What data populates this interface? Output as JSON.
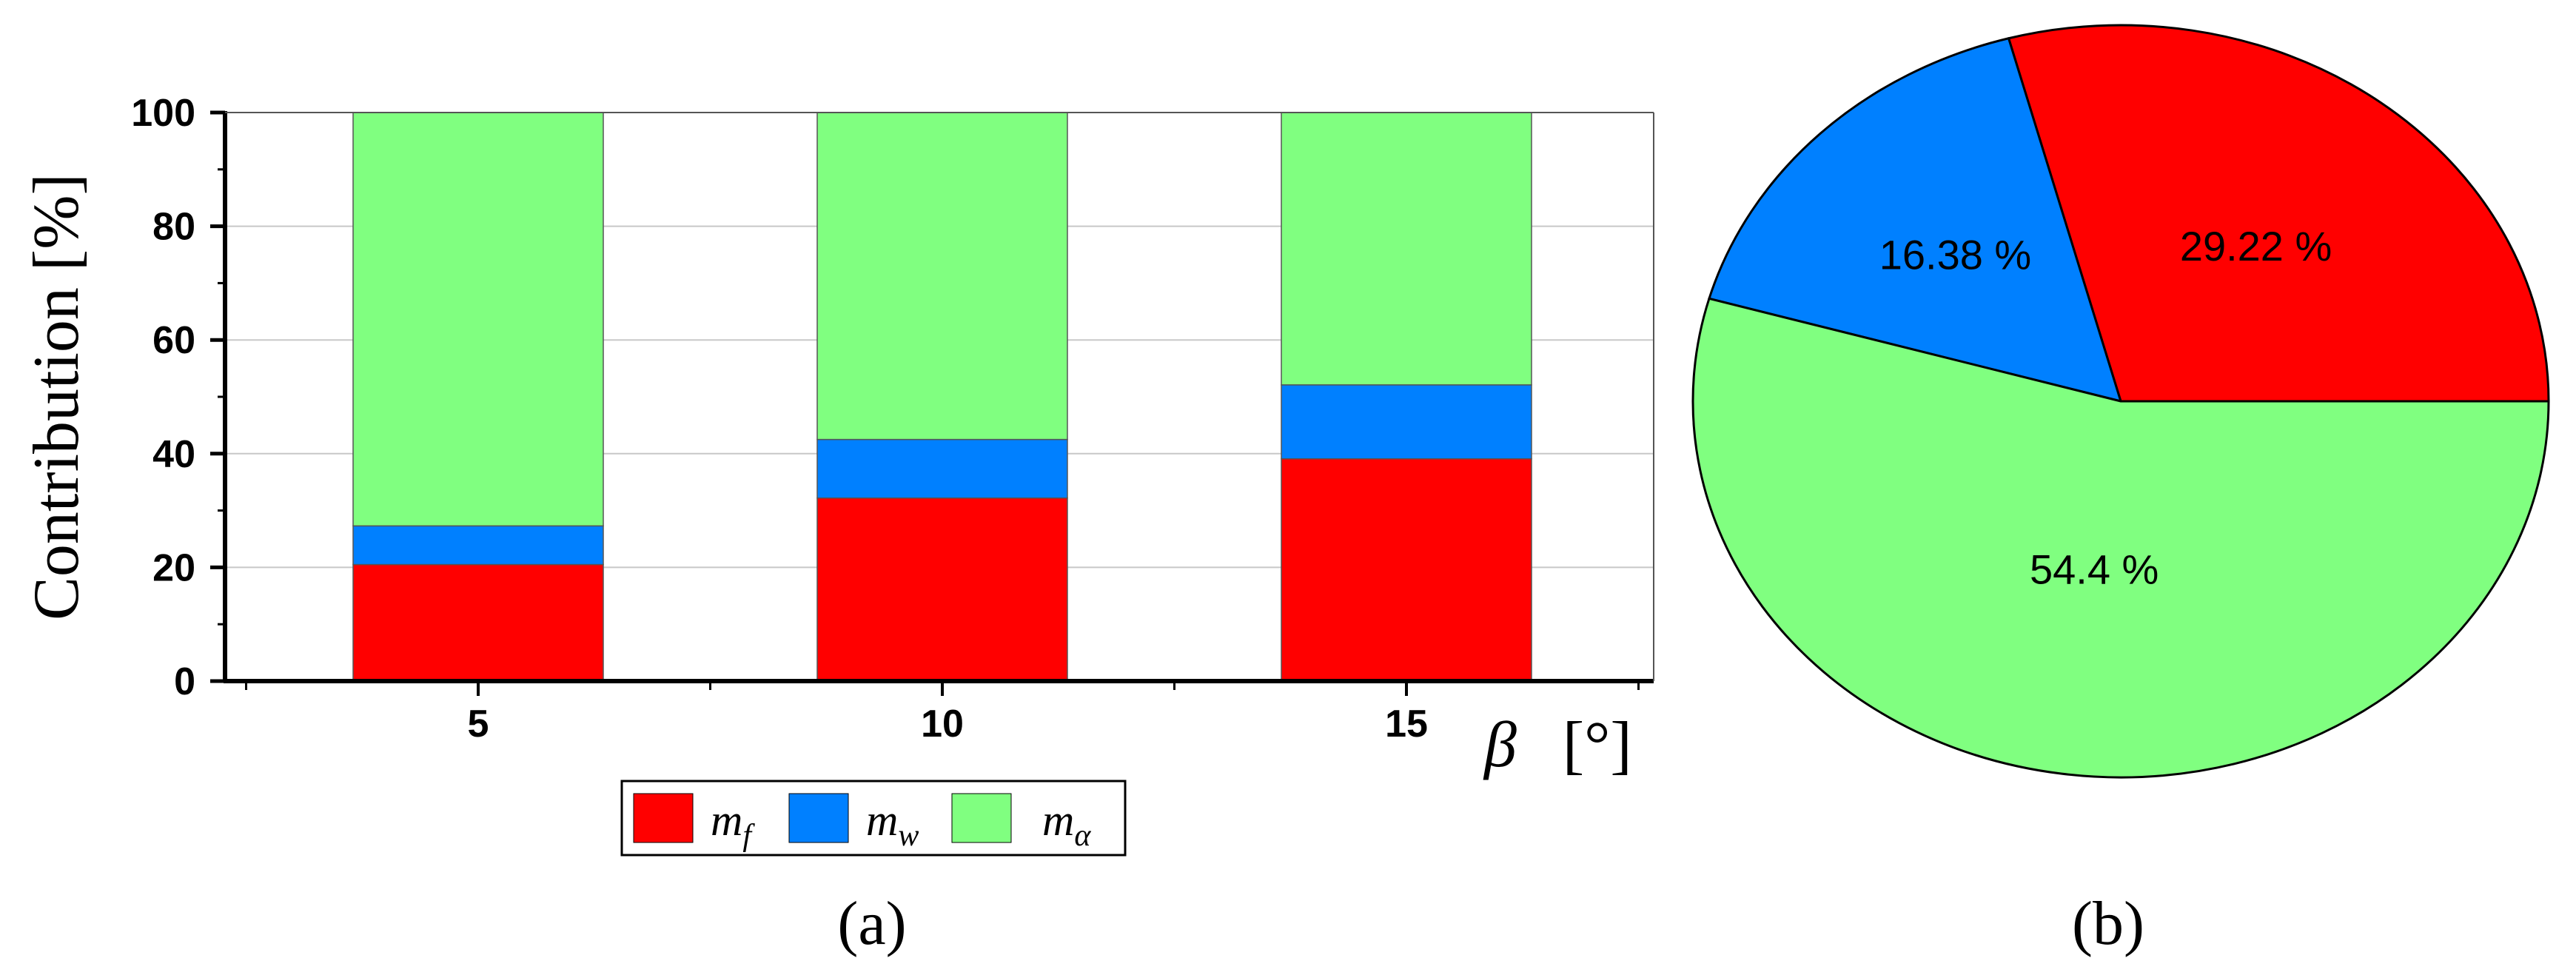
{
  "colors": {
    "mf": "#ff0000",
    "mw": "#0080ff",
    "ma": "#80ff80",
    "grid": "#c8c8c8",
    "axis": "#000000"
  },
  "chart_data": [
    {
      "type": "bar",
      "stacked": true,
      "panel_label": "(a)",
      "categories": [
        "5",
        "10",
        "15"
      ],
      "series": [
        {
          "name_base": "m",
          "name_sub": "f",
          "color": "#ff0000",
          "values": [
            20.5,
            32.2,
            39.1
          ]
        },
        {
          "name_base": "m",
          "name_sub": "w",
          "color": "#0080ff",
          "values": [
            6.8,
            10.3,
            13.0
          ]
        },
        {
          "name_base": "m",
          "name_sub": "α",
          "color": "#80ff80",
          "values": [
            72.7,
            57.5,
            47.9
          ]
        }
      ],
      "ylabel": "Contribution [%]",
      "xlabel_symbol": "β",
      "xlabel_unit": "[°]",
      "ylim": [
        0,
        100
      ],
      "yticks": [
        "0",
        "20",
        "40",
        "60",
        "80",
        "100"
      ],
      "grid": true,
      "legend_position": "bottom"
    },
    {
      "type": "pie",
      "panel_label": "(b)",
      "slices": [
        {
          "value": 29.22,
          "label": "29.22 %",
          "color": "#ff0000"
        },
        {
          "value": 16.38,
          "label": "16.38 %",
          "color": "#0080ff"
        },
        {
          "value": 54.4,
          "label": "54.4 %",
          "color": "#80ff80"
        }
      ]
    }
  ]
}
